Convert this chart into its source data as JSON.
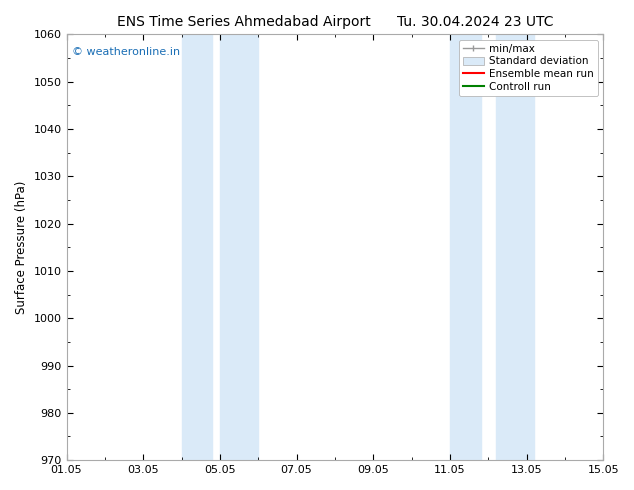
{
  "title_left": "ENS Time Series Ahmedabad Airport",
  "title_right": "Tu. 30.04.2024 23 UTC",
  "ylabel": "Surface Pressure (hPa)",
  "xlabel_ticks": [
    "01.05",
    "03.05",
    "05.05",
    "07.05",
    "09.05",
    "11.05",
    "13.05",
    "15.05"
  ],
  "x_tick_positions": [
    0,
    2,
    4,
    6,
    8,
    10,
    12,
    14
  ],
  "xlim": [
    0,
    14
  ],
  "ylim": [
    970,
    1060
  ],
  "yticks": [
    970,
    980,
    990,
    1000,
    1010,
    1020,
    1030,
    1040,
    1050,
    1060
  ],
  "shaded_bands": [
    {
      "xstart": 3.0,
      "xend": 3.8
    },
    {
      "xstart": 4.0,
      "xend": 5.0
    },
    {
      "xstart": 10.0,
      "xend": 10.8
    },
    {
      "xstart": 11.2,
      "xend": 12.2
    }
  ],
  "shade_color": "#daeaf8",
  "watermark_text": "© weatheronline.in",
  "watermark_color": "#1a6eb5",
  "legend_labels": [
    "min/max",
    "Standard deviation",
    "Ensemble mean run",
    "Controll run"
  ],
  "legend_line_colors": [
    "#999999",
    "#bbcfdd",
    "#ff0000",
    "#008000"
  ],
  "background_color": "#ffffff",
  "plot_bg_color": "#ffffff",
  "grid_color": "#cccccc",
  "spine_color": "#aaaaaa",
  "title_fontsize": 10,
  "tick_fontsize": 8,
  "ylabel_fontsize": 8.5,
  "legend_fontsize": 7.5
}
